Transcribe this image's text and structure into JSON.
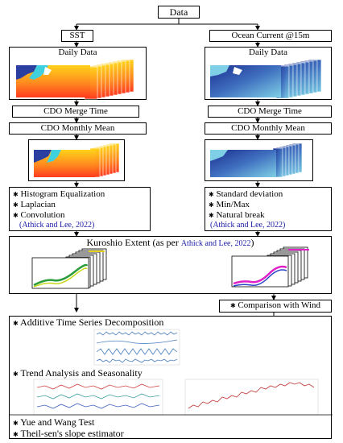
{
  "top_node": {
    "label": "Data"
  },
  "left_branch": {
    "source_label": "SST",
    "daily_label": "Daily Data",
    "merge_label": "CDO  Merge Time",
    "monthly_label": "CDO  Monthly Mean",
    "methods": [
      "Histogram Equalization",
      "Laplacian",
      "Convolution"
    ],
    "citation": "(Athick and Lee, 2022)"
  },
  "right_branch": {
    "source_label": "Ocean Current @15m",
    "daily_label": "Daily Data",
    "merge_label": "CDO  Merge Time",
    "monthly_label": "CDO  Monthly Mean",
    "methods": [
      "Standard deviation",
      "Min/Max",
      "Natural break"
    ],
    "citation": "(Athick and Lee, 2022)"
  },
  "kuroshio": {
    "label_prefix": "Kuroshio Extent (as per ",
    "citation": "Athick and Lee, 2022",
    "label_suffix": ")"
  },
  "comparison": {
    "label": "Comparison with Wind"
  },
  "analysis": {
    "decomposition_label": "Additive Time Series Decomposition",
    "trend_label": "Trend Analysis and Seasonality",
    "tests": [
      "Yue and Wang Test",
      "Theil-sen's slope estimator"
    ]
  },
  "colors": {
    "sst_hot": "#ff3b1f",
    "sst_warm": "#ffd21a",
    "sst_cool": "#3fd0e0",
    "current_dark": "#1c2f8f",
    "current_light": "#7fd0e6",
    "citation_blue": "#1a1aa8"
  }
}
